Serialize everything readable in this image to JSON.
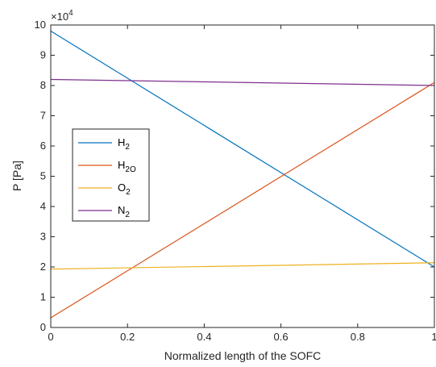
{
  "chart_data": {
    "type": "line",
    "xlabel": "Normalized length of the SOFC",
    "ylabel": "P [Pa]",
    "exponent_base": "×10",
    "exponent_power": "4",
    "xlim": [
      0,
      1
    ],
    "ylim": [
      0,
      100000
    ],
    "xticks": [
      0,
      0.2,
      0.4,
      0.6,
      0.8,
      1
    ],
    "yticks": [
      0,
      10000,
      20000,
      30000,
      40000,
      50000,
      60000,
      70000,
      80000,
      90000,
      100000
    ],
    "ytick_labels": [
      "0",
      "1",
      "2",
      "3",
      "4",
      "5",
      "6",
      "7",
      "8",
      "9",
      "10"
    ],
    "legend_position": "middle-left",
    "series": [
      {
        "name": "H",
        "subscript": "2",
        "color": "#0072BD",
        "x": [
          0,
          1
        ],
        "y": [
          98000,
          20000
        ]
      },
      {
        "name": "H",
        "subscript": "2O",
        "color": "#D95319",
        "x": [
          0,
          1
        ],
        "y": [
          3200,
          81000
        ]
      },
      {
        "name": "O",
        "subscript": "2",
        "color": "#EDB120",
        "x": [
          0,
          1
        ],
        "y": [
          19300,
          21400
        ]
      },
      {
        "name": "N",
        "subscript": "2",
        "color": "#7E2F8E",
        "x": [
          0,
          1
        ],
        "y": [
          82000,
          80000
        ]
      }
    ]
  }
}
